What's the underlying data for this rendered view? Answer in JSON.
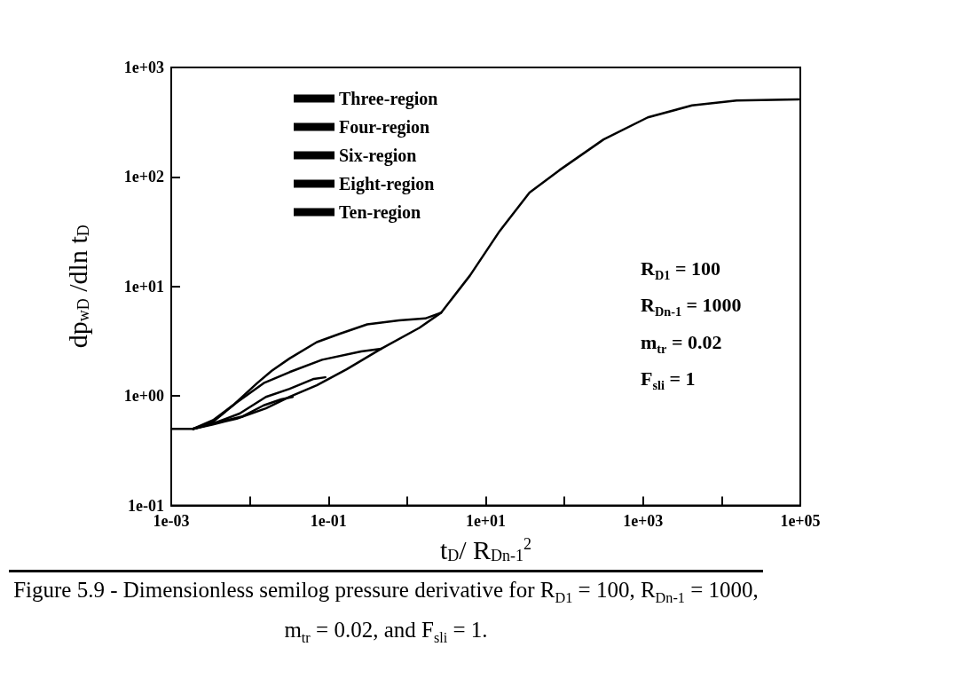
{
  "chart_data": {
    "type": "line",
    "xlabel": "t$_{D}$/ R$_{Dn-1}$$^{2}$",
    "ylabel": "dp$_{wD}$ /dln t$_{D}$",
    "log": "xy",
    "marker": "none",
    "legend": "top left",
    "xlim": [
      0.001,
      100000
    ],
    "ylim": [
      0.1,
      1000
    ],
    "xticks": [
      {
        "value": 0.001,
        "label": "1e-03"
      },
      {
        "value": 0.01,
        "label": null
      },
      {
        "value": 0.1,
        "label": "1e-01"
      },
      {
        "value": 1,
        "label": null
      },
      {
        "value": 10,
        "label": "1e+01"
      },
      {
        "value": 100,
        "label": null
      },
      {
        "value": 1000,
        "label": "1e+03"
      },
      {
        "value": 10000,
        "label": null
      },
      {
        "value": 100000,
        "label": "1e+05"
      }
    ],
    "yticks": [
      {
        "value": 0.1,
        "label": "1e-01"
      },
      {
        "value": 1,
        "label": "1e+00"
      },
      {
        "value": 10,
        "label": "1e+01"
      },
      {
        "value": 100,
        "label": "1e+02"
      },
      {
        "value": 1000,
        "label": "1e+03"
      }
    ],
    "series": [
      {
        "name": "Three-region",
        "color": "#000000",
        "x": [
          0.0019,
          0.0034,
          0.0062,
          0.0124,
          0.019,
          0.032,
          0.071,
          0.14,
          0.31,
          0.79,
          1.7,
          2.7
        ],
        "values": [
          0.5,
          0.6,
          0.83,
          1.31,
          1.7,
          2.2,
          3.1,
          3.7,
          4.5,
          4.9,
          5.1,
          5.75
        ]
      },
      {
        "name": "Four-region",
        "color": "#000000",
        "x": [
          0.0019,
          0.0034,
          0.0068,
          0.015,
          0.032,
          0.083,
          0.26,
          0.47
        ],
        "values": [
          0.5,
          0.58,
          0.87,
          1.31,
          1.65,
          2.14,
          2.55,
          2.7
        ]
      },
      {
        "name": "Six-region",
        "color": "#000000",
        "x": [
          0.0019,
          0.0034,
          0.0074,
          0.016,
          0.032,
          0.065,
          0.091
        ],
        "values": [
          0.5,
          0.56,
          0.69,
          0.98,
          1.16,
          1.43,
          1.48
        ]
      },
      {
        "name": "Eight-region",
        "color": "#000000",
        "x": [
          0.0019,
          0.0034,
          0.0081,
          0.015,
          0.025,
          0.035
        ],
        "values": [
          0.5,
          0.56,
          0.65,
          0.82,
          0.93,
          0.98
        ]
      },
      {
        "name": "Ten-region",
        "color": "#000000",
        "x": [
          0.001,
          0.0019,
          0.0034,
          0.0068,
          0.016,
          0.032,
          0.071,
          0.17,
          0.47,
          1.44,
          2.7,
          6.3,
          15,
          36,
          86,
          315,
          1150,
          4200,
          15500,
          95000
        ],
        "values": [
          0.5,
          0.5,
          0.55,
          0.62,
          0.77,
          0.98,
          1.25,
          1.75,
          2.7,
          4.2,
          5.75,
          12.6,
          32,
          72,
          115,
          220,
          350,
          450,
          500,
          510
        ]
      }
    ],
    "annotations": [
      "R$_{D1}$ = 100",
      "R$_{Dn-1}$ = 1000",
      "m$_{tr}$ = 0.02",
      "F$_{sli}$ = 1",
      "Figure 5.9 - Dimensionless semilog pressure derivative for R$_{D1}$ = 100, R$_{Dn-1}$ = 1000, m$_{tr}$ = 0.02, and F$_{sli}$ = 1."
    ]
  }
}
